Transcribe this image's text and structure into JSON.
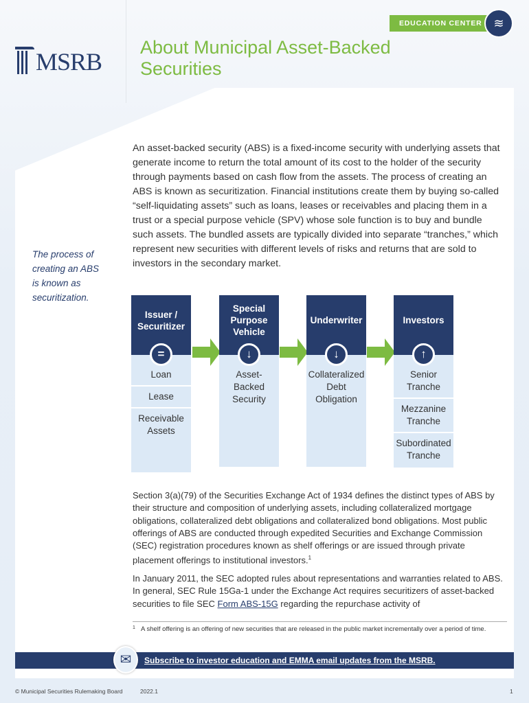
{
  "header": {
    "logo_text": "MSRB",
    "badge": "EDUCATION CENTER",
    "title_line1": "About Municipal Asset-Backed",
    "title_line2": "Securities"
  },
  "aside": "The process of creating an ABS is known as securitization.",
  "intro": "An asset-backed security (ABS) is a fixed-income security with underlying assets that generate income to return the total amount of its cost to the holder of the security through payments based on cash flow from the assets. The process of creating an ABS is known as securitization. Financial institutions create them by buying so-called “self-liquidating assets” such as loans, leases or receivables and placing them in a trust or a special purpose vehicle (SPV) whose sole function is to buy and bundle such assets. The bundled assets are typically divided into separate “tranches,” which represent new securities with different levels of risks and returns that are sold to investors in the secondary market.",
  "flow": [
    {
      "title": "Issuer / Securitizer",
      "icon": "equals-icon",
      "items": [
        "Loan",
        "Lease",
        "Receivable Assets"
      ]
    },
    {
      "title": "Special Purpose Vehicle",
      "icon": "arrow-down-icon",
      "items": [
        "Asset-Backed Security"
      ]
    },
    {
      "title": "Underwriter",
      "icon": "arrow-down-icon",
      "items": [
        "Collateralized Debt Obligation"
      ]
    },
    {
      "title": "Investors",
      "icon": "arrow-up-icon",
      "items": [
        "Senior Tranche",
        "Mezzanine Tranche",
        "Subordinated Tranche"
      ]
    }
  ],
  "para2": "Section 3(a)(79) of the Securities Exchange Act of 1934 defines the distinct types of ABS by their structure and composition of underlying assets, including collateralized mortgage obligations, collateralized debt obligations and collateralized bond obligations. Most public offerings of ABS are conducted through expedited Securities and Exchange Commission (SEC) registration procedures known as shelf offerings or are issued through private placement offerings to institutional investors.",
  "para2_sup": "1",
  "para3_before": "In January 2011, the SEC adopted rules about representations and warranties related to ABS. In general, SEC Rule 15Ga-1 under the Exchange Act requires securitizers of asset-backed securities to file SEC ",
  "para3_link": "Form ABS-15G",
  "para3_after": " regarding the repurchase activity of",
  "footnote": {
    "mark": "1",
    "text": "A shelf offering is an offering of new securities that are released in the public market incrementally over a period of time."
  },
  "subscribe": "Subscribe to investor education and EMMA email updates from the MSRB.",
  "footer": {
    "copyright": "© Municipal Securities Rulemaking Board",
    "version": "2022.1",
    "page": "1"
  },
  "colors": {
    "navy": "#273d6c",
    "green": "#7dbb42",
    "light_blue": "#dce9f6"
  }
}
